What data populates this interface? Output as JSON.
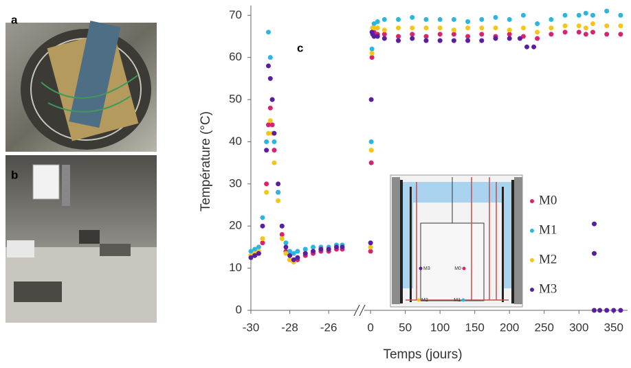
{
  "panels": {
    "a": "a",
    "b": "b"
  },
  "chart_data": {
    "type": "scatter",
    "panel_label": "c",
    "x_label": "Temps (jours)",
    "y_label": "Température (°C)",
    "x_segments": [
      [
        -30,
        -25.3
      ],
      [
        -10,
        370
      ]
    ],
    "xticks": [
      -30,
      -28,
      -26,
      0,
      50,
      100,
      150,
      200,
      250,
      300,
      350
    ],
    "ylim": [
      0,
      72
    ],
    "yticks": [
      0,
      10,
      20,
      30,
      40,
      50,
      60,
      70
    ],
    "inset_labels": [
      "M3",
      "M0",
      "M2",
      "M1"
    ],
    "series": [
      {
        "name": "M0",
        "color": "#d6246e",
        "x": [
          -30,
          -29.8,
          -29.6,
          -29.4,
          -29.2,
          -29.1,
          -29.0,
          -28.9,
          -28.8,
          -28.6,
          -28.4,
          -28.2,
          -28.0,
          -27.8,
          -27.6,
          -27.2,
          -26.8,
          -26.4,
          -26.0,
          -25.6,
          -25.3,
          0,
          1,
          2,
          3,
          5,
          10,
          20,
          40,
          60,
          80,
          100,
          120,
          140,
          160,
          180,
          200,
          220,
          240,
          260,
          280,
          300,
          310,
          320,
          340,
          360
        ],
        "values": [
          13,
          13,
          13.5,
          16,
          30,
          44,
          48,
          44,
          38,
          28,
          18,
          14,
          12,
          11.5,
          12,
          13,
          13.5,
          14,
          14,
          14.5,
          14.5,
          14,
          35,
          60,
          66,
          66,
          65.5,
          65.5,
          65,
          65.5,
          65,
          65.5,
          65.5,
          65,
          65.5,
          65,
          65.5,
          65,
          64.5,
          65.5,
          66,
          66,
          65.5,
          66,
          65.5,
          65.5
        ]
      },
      {
        "name": "M1",
        "color": "#2bb5e0",
        "x": [
          -30,
          -29.8,
          -29.6,
          -29.4,
          -29.2,
          -29.1,
          -29.0,
          -28.9,
          -28.8,
          -28.6,
          -28.4,
          -28.2,
          -28.0,
          -27.8,
          -27.6,
          -27.2,
          -26.8,
          -26.4,
          -26.0,
          -25.6,
          -25.3,
          0,
          1,
          2,
          3,
          5,
          10,
          20,
          40,
          60,
          80,
          100,
          120,
          140,
          160,
          180,
          200,
          220,
          240,
          260,
          280,
          300,
          310,
          320,
          340,
          360
        ],
        "values": [
          14,
          14.5,
          15,
          22,
          40,
          66,
          60,
          50,
          40,
          28,
          20,
          16,
          14,
          13.5,
          14,
          14.5,
          15,
          15,
          15,
          15.5,
          15.5,
          15,
          40,
          62,
          67,
          68,
          68.5,
          69,
          69,
          69.5,
          69,
          69,
          69,
          68.5,
          69,
          69.5,
          69,
          70,
          68,
          69,
          70,
          70,
          70.5,
          70,
          71,
          70
        ]
      },
      {
        "name": "M2",
        "color": "#f5c518",
        "x": [
          -30,
          -29.8,
          -29.6,
          -29.4,
          -29.2,
          -29.1,
          -29.0,
          -28.9,
          -28.8,
          -28.6,
          -28.4,
          -28.2,
          -28.0,
          -27.8,
          -27.6,
          -27.2,
          -26.8,
          -26.4,
          -26.0,
          -25.6,
          -25.3,
          0,
          1,
          2,
          3,
          5,
          10,
          20,
          40,
          60,
          80,
          100,
          120,
          140,
          160,
          180,
          200,
          220,
          240,
          260,
          280,
          300,
          310,
          320,
          340,
          360
        ],
        "values": [
          13,
          13.5,
          14,
          17,
          28,
          42,
          45,
          42,
          35,
          26,
          17,
          13.5,
          12,
          11.5,
          12.5,
          13.5,
          14,
          14.5,
          14.5,
          15,
          15,
          15,
          38,
          61,
          67,
          67,
          67,
          66.5,
          67,
          67,
          67,
          67,
          66.5,
          67,
          67,
          67,
          66.5,
          67,
          66,
          67,
          67.5,
          67.5,
          67,
          68,
          67.5,
          67.5
        ]
      },
      {
        "name": "M3",
        "color": "#5a1fa0",
        "x": [
          -30,
          -29.8,
          -29.6,
          -29.4,
          -29.2,
          -29.1,
          -29.0,
          -28.9,
          -28.8,
          -28.6,
          -28.4,
          -28.2,
          -28.0,
          -27.8,
          -27.6,
          -27.2,
          -26.8,
          -26.4,
          -26.0,
          -25.6,
          -25.3,
          0,
          1,
          2,
          3,
          5,
          10,
          20,
          40,
          60,
          80,
          100,
          120,
          140,
          160,
          180,
          200,
          215,
          225,
          235,
          322,
          322,
          322,
          330,
          340,
          350,
          360
        ],
        "values": [
          12.5,
          13,
          13.5,
          20,
          38,
          58,
          55,
          50,
          42,
          30,
          20,
          15,
          13,
          12,
          12.5,
          13.5,
          14,
          14.5,
          14.5,
          15,
          15,
          16,
          50,
          66,
          65.5,
          65,
          65,
          64.5,
          64,
          64.5,
          64,
          64,
          64,
          64,
          64,
          64.5,
          64.5,
          64.5,
          62.5,
          62.5,
          20.5,
          13.5,
          0,
          0,
          0,
          0,
          0
        ]
      }
    ]
  }
}
